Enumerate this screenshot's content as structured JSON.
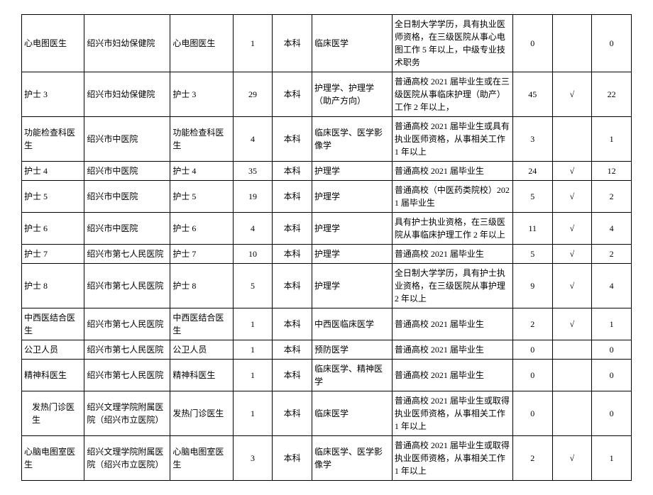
{
  "table": {
    "rows": [
      {
        "position": "心电图医生",
        "org": "绍兴市妇幼保健院",
        "job": "心电图医生",
        "count": "1",
        "edu": "本科",
        "major": "临床医学",
        "req": "全日制大学学历，具有执业医师资格，在三级医院从事心电图工作 5 年以上，中级专业技术职务",
        "n1": "0",
        "chk": "",
        "n2": "0"
      },
      {
        "position": "护士 3",
        "org": "绍兴市妇幼保健院",
        "job": "护士 3",
        "count": "29",
        "edu": "本科",
        "major": "护理学、护理学（助产方向）",
        "req": "普通高校 2021 届毕业生或在三级医院从事临床护理（助产）工作 2 年以上，",
        "n1": "45",
        "chk": "√",
        "n2": "22"
      },
      {
        "position": "功能检查科医生",
        "org": "绍兴市中医院",
        "job": "功能检查科医生",
        "count": "4",
        "edu": "本科",
        "major": "临床医学、医学影像学",
        "req": "普通高校 2021 届毕业生或具有执业医师资格，从事相关工作 1 年以上",
        "n1": "3",
        "chk": "",
        "n2": "1"
      },
      {
        "position": "护士 4",
        "org": "绍兴市中医院",
        "job": "护士 4",
        "count": "35",
        "edu": "本科",
        "major": "护理学",
        "req": "普通高校 2021 届毕业生",
        "n1": "24",
        "chk": "√",
        "n2": "12"
      },
      {
        "position": "护士 5",
        "org": "绍兴市中医院",
        "job": "护士 5",
        "count": "19",
        "edu": "本科",
        "major": "护理学",
        "req": "普通高校（中医药类院校）2021 届毕业生",
        "n1": "5",
        "chk": "√",
        "n2": "2"
      },
      {
        "position": "护士 6",
        "org": "绍兴市中医院",
        "job": "护士 6",
        "count": "4",
        "edu": "本科",
        "major": "护理学",
        "req": "具有护士执业资格，在三级医院从事临床护理工作 2 年以上",
        "n1": "11",
        "chk": "√",
        "n2": "4"
      },
      {
        "position": "护士 7",
        "org": "绍兴市第七人民医院",
        "job": "护士 7",
        "count": "10",
        "edu": "本科",
        "major": "护理学",
        "req": "普通高校 2021 届毕业生",
        "n1": "5",
        "chk": "√",
        "n2": "2"
      },
      {
        "position": "护士 8",
        "org": "绍兴市第七人民医院",
        "job": "护士 8",
        "count": "5",
        "edu": "本科",
        "major": "护理学",
        "req": "全日制大学学历，具有护士执业资格，在三级医院从事护理 2 年以上",
        "n1": "9",
        "chk": "√",
        "n2": "4"
      },
      {
        "position": "中西医结合医生",
        "org": "绍兴市第七人民医院",
        "job": "中西医结合医生",
        "count": "1",
        "edu": "本科",
        "major": "中西医临床医学",
        "req": "普通高校 2021 届毕业生",
        "n1": "2",
        "chk": "√",
        "n2": "1"
      },
      {
        "position": "公卫人员",
        "org": "绍兴市第七人民医院",
        "job": "公卫人员",
        "count": "1",
        "edu": "本科",
        "major": "预防医学",
        "req": "普通高校 2021 届毕业生",
        "n1": "0",
        "chk": "",
        "n2": "0"
      },
      {
        "position": "精神科医生",
        "org": "绍兴市第七人民医院",
        "job": "精神科医生",
        "count": "1",
        "edu": "本科",
        "major": "临床医学、精神医学",
        "req": "普通高校 2021 届毕业生",
        "n1": "0",
        "chk": "",
        "n2": "0"
      },
      {
        "position": "发热门诊医生",
        "position_indent": true,
        "org": "绍兴文理学院附属医院（绍兴市立医院）",
        "job": "发热门诊医生",
        "count": "1",
        "edu": "本科",
        "major": "临床医学",
        "req": "普通高校 2021 届毕业生或取得执业医师资格，从事相关工作 1 年以上",
        "n1": "0",
        "chk": "",
        "n2": "0"
      },
      {
        "position": "心脑电图室医生",
        "org": "绍兴文理学院附属医院（绍兴市立医院）",
        "job": "心脑电图室医生",
        "count": "3",
        "edu": "本科",
        "major": "临床医学、医学影像学",
        "req": "普通高校 2021 届毕业生或取得执业医师资格，从事相关工作 1 年以上",
        "n1": "2",
        "chk": "√",
        "n2": "1"
      }
    ]
  }
}
